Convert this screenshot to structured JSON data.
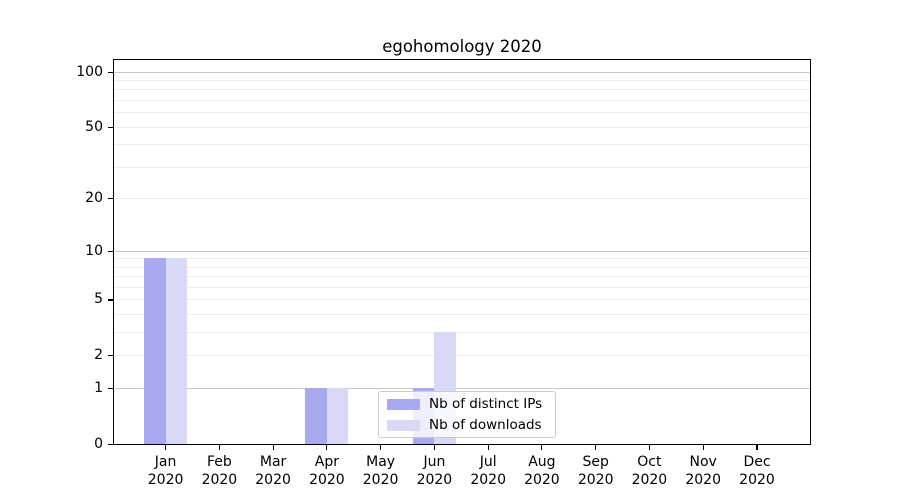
{
  "chart_data": {
    "type": "bar",
    "title": "egohomology 2020",
    "categories": [
      "Jan",
      "Feb",
      "Mar",
      "Apr",
      "May",
      "Jun",
      "Jul",
      "Aug",
      "Sep",
      "Oct",
      "Nov",
      "Dec"
    ],
    "category_sublabel": "2020",
    "series": [
      {
        "name": "Nb of distinct IPs",
        "color": "#a9a9f0",
        "values": [
          9,
          0,
          0,
          1,
          0,
          1,
          0,
          0,
          0,
          0,
          0,
          0
        ]
      },
      {
        "name": "Nb of downloads",
        "color": "#d8d8f7",
        "values": [
          9,
          0,
          0,
          1,
          0,
          3,
          0,
          0,
          0,
          0,
          0,
          0
        ]
      }
    ],
    "xlabel": "",
    "ylabel": "",
    "yscale": "log1p",
    "yticks": [
      0,
      1,
      2,
      5,
      10,
      20,
      50,
      100
    ],
    "ytick_major_gridlines": [
      1,
      10,
      100
    ],
    "ytick_minor_gridlines": [
      2,
      3,
      4,
      5,
      6,
      7,
      8,
      9,
      20,
      30,
      40,
      50,
      60,
      70,
      80,
      90
    ],
    "ylim": [
      0,
      115.5
    ],
    "grid": "horizontal",
    "legend_position": "lower-center",
    "colors": {
      "grid_major": "#c9c9c9",
      "grid_minor": "#ededed",
      "axis": "#000000",
      "background": "#ffffff"
    }
  }
}
